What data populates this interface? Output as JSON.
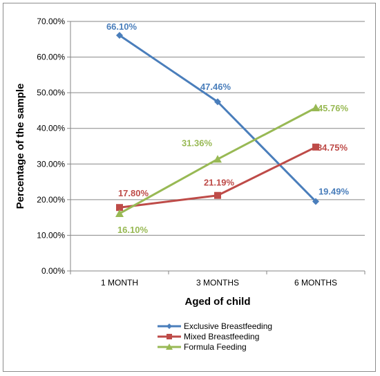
{
  "chart_data": {
    "type": "line",
    "title": "",
    "xlabel": "Aged of child",
    "ylabel": "Percentage of the sample",
    "categories": [
      "1 MONTH",
      "3 MONTHS",
      "6 MONTHS"
    ],
    "ylim": [
      0,
      70
    ],
    "yticks": [
      0,
      10,
      20,
      30,
      40,
      50,
      60,
      70
    ],
    "ytick_labels": [
      "0.00%",
      "10.00%",
      "20.00%",
      "30.00%",
      "40.00%",
      "50.00%",
      "60.00%",
      "70.00%"
    ],
    "grid": "horizontal",
    "legend_position": "bottom",
    "series": [
      {
        "name": "Exclusive Breastfeeding",
        "color": "#4a7ebb",
        "marker": "diamond",
        "values": [
          66.1,
          47.46,
          19.49
        ],
        "labels": [
          "66.10%",
          "47.46%",
          "19.49%"
        ]
      },
      {
        "name": "Mixed Breastfeeding",
        "color": "#be4b48",
        "marker": "square",
        "values": [
          17.8,
          21.19,
          34.75
        ],
        "labels": [
          "17.80%",
          "21.19%",
          "34.75%"
        ]
      },
      {
        "name": "Formula Feeding",
        "color": "#98b954",
        "marker": "triangle",
        "values": [
          16.1,
          31.36,
          45.76
        ],
        "labels": [
          "16.10%",
          "31.36%",
          "45.76%"
        ]
      }
    ]
  }
}
